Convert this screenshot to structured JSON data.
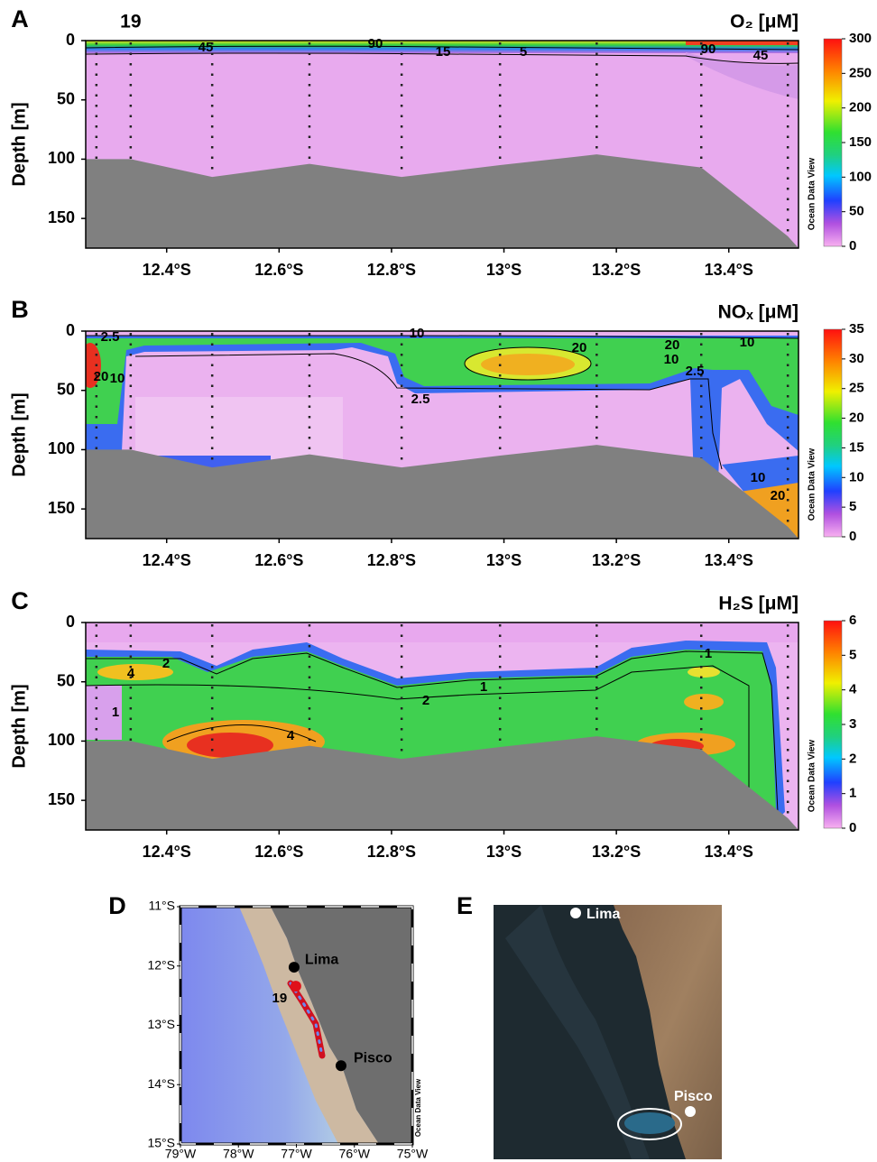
{
  "transect": {
    "station_lat": [
      12.275,
      12.336,
      12.481,
      12.654,
      12.818,
      12.993,
      13.165,
      13.351,
      13.505
    ],
    "seafloor_depth": [
      100,
      100,
      115,
      104,
      115,
      105,
      96,
      107,
      165
    ]
  },
  "chart_data": [
    {
      "type": "section",
      "panel_label": "A",
      "title": "O₂ [μM]",
      "station_label": "19",
      "ylabel": "Depth [m]",
      "ylim": [
        0,
        175
      ],
      "yticks": [
        0,
        50,
        100,
        150
      ],
      "xlim": [
        12.256,
        13.524
      ],
      "xticks": [
        {
          "value": 12.4,
          "label": "12.4°S"
        },
        {
          "value": 12.6,
          "label": "12.6°S"
        },
        {
          "value": 12.8,
          "label": "12.8°S"
        },
        {
          "value": 13.0,
          "label": "13°S"
        },
        {
          "value": 13.2,
          "label": "13.2°S"
        },
        {
          "value": 13.4,
          "label": "13.4°S"
        }
      ],
      "clim": [
        0,
        300
      ],
      "cticks": [
        0,
        50,
        100,
        150,
        200,
        250,
        300
      ],
      "watermark": "Ocean Data View",
      "contour_labels": [
        45,
        90,
        15,
        5,
        90,
        45
      ]
    },
    {
      "type": "section",
      "panel_label": "B",
      "title": "NOₓ [μM]",
      "ylabel": "Depth [m]",
      "ylim": [
        0,
        175
      ],
      "yticks": [
        0,
        50,
        100,
        150
      ],
      "xlim": [
        12.256,
        13.524
      ],
      "xticks": [
        {
          "value": 12.4,
          "label": "12.4°S"
        },
        {
          "value": 12.6,
          "label": "12.6°S"
        },
        {
          "value": 12.8,
          "label": "12.8°S"
        },
        {
          "value": 13.0,
          "label": "13°S"
        },
        {
          "value": 13.2,
          "label": "13.2°S"
        },
        {
          "value": 13.4,
          "label": "13.4°S"
        }
      ],
      "clim": [
        0,
        35
      ],
      "cticks": [
        0,
        5,
        10,
        15,
        20,
        25,
        30,
        35
      ],
      "watermark": "Ocean Data View",
      "contour_labels": [
        2.5,
        10,
        20,
        20,
        10,
        20,
        10,
        10,
        2.5,
        2.5,
        10,
        20
      ]
    },
    {
      "type": "section",
      "panel_label": "C",
      "title": "H₂S [μM]",
      "ylabel": "Depth [m]",
      "ylim": [
        0,
        175
      ],
      "yticks": [
        0,
        50,
        100,
        150
      ],
      "xlim": [
        12.256,
        13.524
      ],
      "xticks": [
        {
          "value": 12.4,
          "label": "12.4°S"
        },
        {
          "value": 12.6,
          "label": "12.6°S"
        },
        {
          "value": 12.8,
          "label": "12.8°S"
        },
        {
          "value": 13.0,
          "label": "13°S"
        },
        {
          "value": 13.2,
          "label": "13.2°S"
        },
        {
          "value": 13.4,
          "label": "13.4°S"
        }
      ],
      "clim": [
        0,
        6
      ],
      "cticks": [
        0,
        1,
        2,
        3,
        4,
        5,
        6
      ],
      "watermark": "Ocean Data View",
      "contour_labels": [
        2,
        4,
        1,
        4,
        2,
        1,
        1
      ]
    },
    {
      "type": "map",
      "panel_label": "D",
      "xlim": [
        79,
        75
      ],
      "ylim": [
        11,
        15
      ],
      "xticks": [
        {
          "value": 79,
          "label": "79°W"
        },
        {
          "value": 78,
          "label": "78°W"
        },
        {
          "value": 77,
          "label": "77°W"
        },
        {
          "value": 76,
          "label": "76°W"
        },
        {
          "value": 75,
          "label": "75°W"
        }
      ],
      "yticks": [
        {
          "value": 11,
          "label": "11°S"
        },
        {
          "value": 12,
          "label": "12°S"
        },
        {
          "value": 13,
          "label": "13°S"
        },
        {
          "value": 14,
          "label": "14°S"
        },
        {
          "value": 15,
          "label": "15°S"
        }
      ],
      "points": [
        {
          "name": "Lima",
          "lon": 77.04,
          "lat": 12.02,
          "color": "#000000"
        },
        {
          "name": "Pisco",
          "lon": 76.23,
          "lat": 13.68,
          "color": "#000000"
        },
        {
          "name": "19",
          "lon": 77.01,
          "lat": 12.34,
          "color": "#e0101a"
        }
      ],
      "watermark": "Ocean Data View"
    },
    {
      "type": "image",
      "panel_label": "E",
      "labels": [
        "Lima",
        "Pisco"
      ]
    }
  ]
}
